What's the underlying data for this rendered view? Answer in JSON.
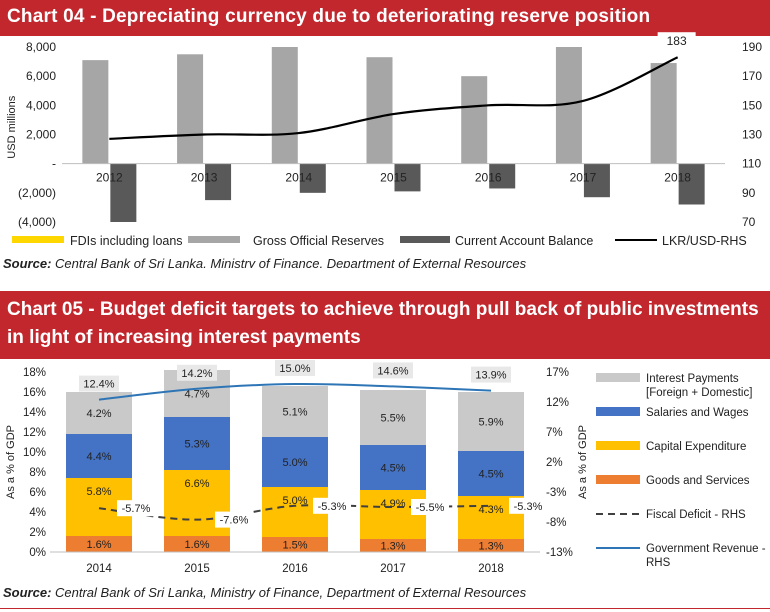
{
  "chart1": {
    "title": "Chart 04 - Depreciating currency due to deteriorating reserve position",
    "source_label": "Source:",
    "source_text": " Central Bank of Sri Lanka, Ministry of Finance, Department of External Resources",
    "chart_data": {
      "type": "bar",
      "categories": [
        "2012",
        "2013",
        "2014",
        "2015",
        "2016",
        "2017",
        "2018"
      ],
      "ylabel": "USD millions",
      "ylim": [
        -4000,
        8000
      ],
      "y_ticks": [
        "8,000",
        "6,000",
        "4,000",
        "2,000",
        "-",
        "(2,000)",
        "(4,000)"
      ],
      "y2lim": [
        70,
        190
      ],
      "y2_ticks": [
        "190",
        "170",
        "150",
        "130",
        "110",
        "90",
        "70"
      ],
      "series": [
        {
          "name": "FDIs including loans",
          "type": "bar",
          "color": "#ffd700",
          "values": [
            0,
            0,
            0,
            0,
            0,
            0,
            0
          ]
        },
        {
          "name": "Gross Official Reserves",
          "type": "bar",
          "color": "#a6a6a6",
          "values": [
            7100,
            7500,
            8000,
            7300,
            6000,
            8000,
            6900
          ]
        },
        {
          "name": "Current Account Balance",
          "type": "bar",
          "color": "#595959",
          "values": [
            -4000,
            -2500,
            -2000,
            -1900,
            -1700,
            -2300,
            -2800
          ]
        },
        {
          "name": "LKR/USD-RHS",
          "type": "line",
          "axis": "right",
          "color": "#000000",
          "values": [
            127,
            130,
            131,
            144,
            150,
            153,
            183
          ]
        }
      ],
      "data_labels": [
        {
          "series": "LKR/USD-RHS",
          "category": "2018",
          "text": "183"
        }
      ],
      "legend_position": "bottom",
      "grid": false
    }
  },
  "chart2": {
    "title_line1": "Chart 05 - Budget deficit targets to achieve through pull back of public investments",
    "title_line2": "in light of increasing interest payments",
    "source_label": "Source:",
    "source_text": " Central Bank of Sri Lanka, Ministry of Finance, Department of External Resources",
    "chart_data": {
      "type": "bar",
      "stacked": true,
      "categories": [
        "2014",
        "2015",
        "2016",
        "2017",
        "2018"
      ],
      "ylabel": "As a % of GDP",
      "ylim": [
        0,
        18
      ],
      "y_ticks": [
        "18%",
        "16%",
        "14%",
        "12%",
        "10%",
        "8%",
        "6%",
        "4%",
        "2%",
        "0%"
      ],
      "y2label": "As a % of GDP",
      "y2lim": [
        -13,
        17
      ],
      "y2_ticks": [
        "17%",
        "12%",
        "7%",
        "2%",
        "-3%",
        "-8%",
        "-13%"
      ],
      "series": [
        {
          "name": "Goods and Services",
          "type": "bar",
          "color": "#ed7d31",
          "values": [
            1.6,
            1.6,
            1.5,
            1.3,
            1.3
          ],
          "labels": [
            "1.6%",
            "1.6%",
            "1.5%",
            "1.3%",
            "1.3%"
          ]
        },
        {
          "name": "Capital Expenditure",
          "type": "bar",
          "color": "#ffc000",
          "values": [
            5.8,
            6.6,
            5.0,
            4.9,
            4.3
          ],
          "labels": [
            "5.8%",
            "6.6%",
            "5.0%",
            "4.9%",
            "4.3%"
          ]
        },
        {
          "name": "Salaries and Wages",
          "type": "bar",
          "color": "#4472c4",
          "values": [
            4.4,
            5.3,
            5.0,
            4.5,
            4.5
          ],
          "labels": [
            "4.4%",
            "5.3%",
            "5.0%",
            "4.5%",
            "4.5%"
          ]
        },
        {
          "name": "Interest Payments [Foreign + Domestic]",
          "type": "bar",
          "color": "#c9c9c9",
          "values": [
            4.2,
            4.7,
            5.1,
            5.5,
            5.9
          ],
          "labels": [
            "4.2%",
            "4.7%",
            "5.1%",
            "5.5%",
            "5.9%"
          ]
        },
        {
          "name": "Fiscal Deficit - RHS",
          "type": "line",
          "axis": "right",
          "style": "dashed",
          "color": "#404040",
          "values": [
            -5.7,
            -7.6,
            -5.3,
            -5.5,
            -5.3
          ],
          "labels": [
            "-5.7%",
            "-7.6%",
            "-5.3%",
            "-5.5%",
            "-5.3%"
          ]
        },
        {
          "name": "Government Revenue - RHS",
          "type": "line",
          "axis": "right",
          "color": "#2e75b6",
          "values": [
            12.4,
            14.2,
            15.0,
            14.6,
            13.9
          ],
          "labels": [
            "12.4%",
            "14.2%",
            "15.0%",
            "14.6%",
            "13.9%"
          ]
        }
      ],
      "legend": [
        {
          "line1": "Interest Payments",
          "line2": "[Foreign + Domestic]",
          "color": "#c9c9c9",
          "kind": "box"
        },
        {
          "line1": "Salaries and Wages",
          "line2": "",
          "color": "#4472c4",
          "kind": "box"
        },
        {
          "line1": "Capital Expenditure",
          "line2": "",
          "color": "#ffc000",
          "kind": "box"
        },
        {
          "line1": "Goods and Services",
          "line2": "",
          "color": "#ed7d31",
          "kind": "box"
        },
        {
          "line1": "Fiscal Deficit - RHS",
          "line2": "",
          "color": "#404040",
          "kind": "dash"
        },
        {
          "line1": "Government Revenue -",
          "line2": "RHS",
          "color": "#2e75b6",
          "kind": "line"
        }
      ],
      "legend_position": "right",
      "grid": false
    }
  }
}
